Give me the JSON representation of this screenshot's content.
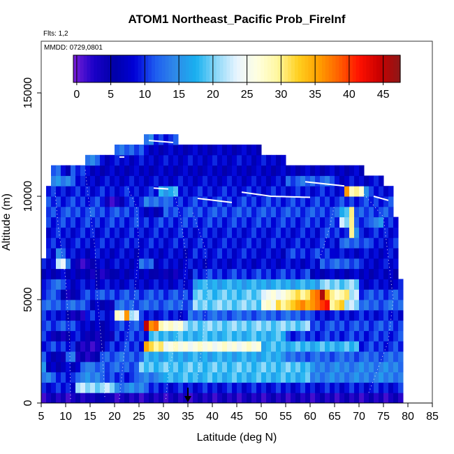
{
  "chart_data": {
    "type": "heatmap",
    "title": "ATOM1 Northeast_Pacific Prob_FireInf",
    "annotation_flts": "Flts: 1,2",
    "annotation_mmdd": "MMDD: 0729,0801",
    "xlabel": "Latitude (deg N)",
    "ylabel": "Altitude (m)",
    "xlim": [
      5,
      85
    ],
    "ylim": [
      0,
      17500
    ],
    "x_ticks": [
      5,
      10,
      15,
      20,
      25,
      30,
      35,
      40,
      45,
      50,
      55,
      60,
      65,
      70,
      75,
      80,
      85
    ],
    "y_ticks": [
      0,
      5000,
      10000,
      15000
    ],
    "colorbar": {
      "min": -0.5,
      "max": 47.5,
      "ticks": [
        0,
        5,
        10,
        15,
        20,
        25,
        30,
        35,
        40,
        45
      ],
      "colors": [
        "#7a1fd6",
        "#1a00c8",
        "#0000a8",
        "#0000d8",
        "#1e5cf0",
        "#2f8ae8",
        "#18b0f0",
        "#8cd8f8",
        "#e8f4ff",
        "#ffffe0",
        "#fff7a0",
        "#ffd020",
        "#ffa000",
        "#ff6000",
        "#ff1000",
        "#c80000",
        "#8c1818"
      ]
    },
    "marker_latitude": 35,
    "lat_bin_width": 1,
    "alt_bin_height": 500,
    "altitude_bins": [
      {
        "alt": 0,
        "from": 5,
        "to": 79,
        "base": 3,
        "features": [
          [
            15,
            19,
            5
          ]
        ]
      },
      {
        "alt": 500,
        "from": 5,
        "to": 79,
        "base": 9,
        "features": [
          [
            12,
            20,
            21
          ],
          [
            20,
            27,
            14
          ]
        ]
      },
      {
        "alt": 1000,
        "from": 5,
        "to": 79,
        "base": 14,
        "features": [
          [
            8,
            12,
            9
          ],
          [
            18,
            25,
            10
          ],
          [
            30,
            60,
            18
          ],
          [
            60,
            75,
            14
          ]
        ]
      },
      {
        "alt": 1500,
        "from": 5,
        "to": 79,
        "base": 14,
        "features": [
          [
            6,
            13,
            7
          ],
          [
            15,
            25,
            12
          ],
          [
            25,
            60,
            19
          ]
        ]
      },
      {
        "alt": 2000,
        "from": 5,
        "to": 79,
        "base": 12,
        "features": [
          [
            6,
            10,
            6
          ],
          [
            12,
            17,
            4
          ],
          [
            26,
            55,
            17
          ]
        ]
      },
      {
        "alt": 2500,
        "from": 5,
        "to": 79,
        "base": 10,
        "features": [
          [
            26,
            27,
            35
          ],
          [
            27,
            30,
            30
          ],
          [
            30,
            50,
            26
          ],
          [
            50,
            70,
            18
          ],
          [
            12,
            18,
            3
          ]
        ]
      },
      {
        "alt": 3000,
        "from": 5,
        "to": 79,
        "base": 10,
        "features": [
          [
            7,
            11,
            4
          ],
          [
            13,
            20,
            5
          ],
          [
            27,
            55,
            18
          ]
        ]
      },
      {
        "alt": 3500,
        "from": 5,
        "to": 79,
        "base": 11,
        "features": [
          [
            26,
            27,
            44
          ],
          [
            27,
            29,
            38
          ],
          [
            29,
            34,
            27
          ],
          [
            34,
            60,
            20
          ],
          [
            13,
            20,
            7
          ]
        ]
      },
      {
        "alt": 4000,
        "from": 5,
        "to": 79,
        "base": 9,
        "features": [
          [
            20,
            22,
            26
          ],
          [
            22,
            23,
            35
          ],
          [
            23,
            25,
            23
          ],
          [
            35,
            60,
            12
          ],
          [
            10,
            14,
            4
          ]
        ]
      },
      {
        "alt": 4500,
        "from": 5,
        "to": 79,
        "base": 12,
        "features": [
          [
            36,
            50,
            20
          ],
          [
            50,
            53,
            26
          ],
          [
            53,
            57,
            31
          ],
          [
            57,
            62,
            36
          ],
          [
            62,
            64,
            41
          ],
          [
            64,
            67,
            31
          ],
          [
            67,
            70,
            22
          ],
          [
            15,
            20,
            6
          ]
        ]
      },
      {
        "alt": 5000,
        "from": 5,
        "to": 79,
        "base": 11,
        "features": [
          [
            36,
            50,
            19
          ],
          [
            50,
            55,
            25
          ],
          [
            55,
            60,
            30
          ],
          [
            60,
            62,
            38
          ],
          [
            62,
            63,
            44
          ],
          [
            63,
            64,
            36
          ],
          [
            64,
            68,
            29
          ],
          [
            68,
            70,
            22
          ],
          [
            9,
            13,
            5
          ]
        ]
      },
      {
        "alt": 5500,
        "from": 5,
        "to": 79,
        "base": 8,
        "features": [
          [
            36,
            62,
            17
          ],
          [
            62,
            70,
            20
          ],
          [
            6,
            10,
            12
          ]
        ]
      },
      {
        "alt": 6000,
        "from": 5,
        "to": 78,
        "base": 7,
        "features": [
          [
            36,
            60,
            10
          ],
          [
            14,
            20,
            4
          ],
          [
            28,
            33,
            5
          ]
        ]
      },
      {
        "alt": 6500,
        "from": 5,
        "to": 78,
        "base": 8,
        "features": [
          [
            8,
            10,
            24
          ],
          [
            10,
            11,
            12
          ],
          [
            12,
            16,
            3
          ],
          [
            25,
            28,
            12
          ],
          [
            62,
            70,
            12
          ]
        ]
      },
      {
        "alt": 7000,
        "from": 6,
        "to": 78,
        "base": 8,
        "features": [
          [
            8,
            10,
            14
          ],
          [
            36,
            50,
            9
          ],
          [
            55,
            65,
            10
          ]
        ]
      },
      {
        "alt": 7500,
        "from": 6,
        "to": 78,
        "base": 9,
        "features": [
          [
            8,
            12,
            9
          ],
          [
            66,
            72,
            12
          ]
        ]
      },
      {
        "alt": 8000,
        "from": 6,
        "to": 78,
        "base": 9,
        "features": [
          [
            62,
            68,
            10
          ],
          [
            68,
            69,
            28
          ],
          [
            69,
            70,
            16
          ]
        ]
      },
      {
        "alt": 8500,
        "from": 6,
        "to": 78,
        "base": 10,
        "features": [
          [
            66,
            68,
            22
          ],
          [
            68,
            69,
            30
          ],
          [
            72,
            75,
            14
          ]
        ]
      },
      {
        "alt": 9000,
        "from": 6,
        "to": 77,
        "base": 11,
        "features": [
          [
            66,
            68,
            18
          ],
          [
            68,
            69,
            32
          ],
          [
            25,
            30,
            7
          ]
        ]
      },
      {
        "alt": 9500,
        "from": 6,
        "to": 77,
        "base": 10,
        "features": [
          [
            18,
            22,
            3
          ],
          [
            26,
            31,
            13
          ]
        ]
      },
      {
        "alt": 10000,
        "from": 6,
        "to": 77,
        "base": 9,
        "features": [
          [
            67,
            68,
            34
          ],
          [
            68,
            71,
            29
          ],
          [
            71,
            72,
            15
          ],
          [
            29,
            33,
            17
          ]
        ]
      },
      {
        "alt": 10500,
        "from": 7,
        "to": 75,
        "base": 8,
        "features": [
          [
            7,
            12,
            14
          ],
          [
            55,
            65,
            12
          ]
        ]
      },
      {
        "alt": 11000,
        "from": 7,
        "to": 71,
        "base": 7,
        "features": [
          [
            7,
            9,
            13
          ],
          [
            11,
            14,
            11
          ]
        ]
      },
      {
        "alt": 11500,
        "from": 14,
        "to": 55,
        "base": 8,
        "features": [
          [
            14,
            17,
            13
          ]
        ]
      },
      {
        "alt": 12000,
        "from": 20,
        "to": 50,
        "base": 7,
        "features": [
          [
            20,
            26,
            12
          ]
        ]
      },
      {
        "alt": 12500,
        "from": 26,
        "to": 33,
        "base": 10,
        "features": [
          [
            26,
            28,
            13
          ]
        ]
      }
    ]
  }
}
